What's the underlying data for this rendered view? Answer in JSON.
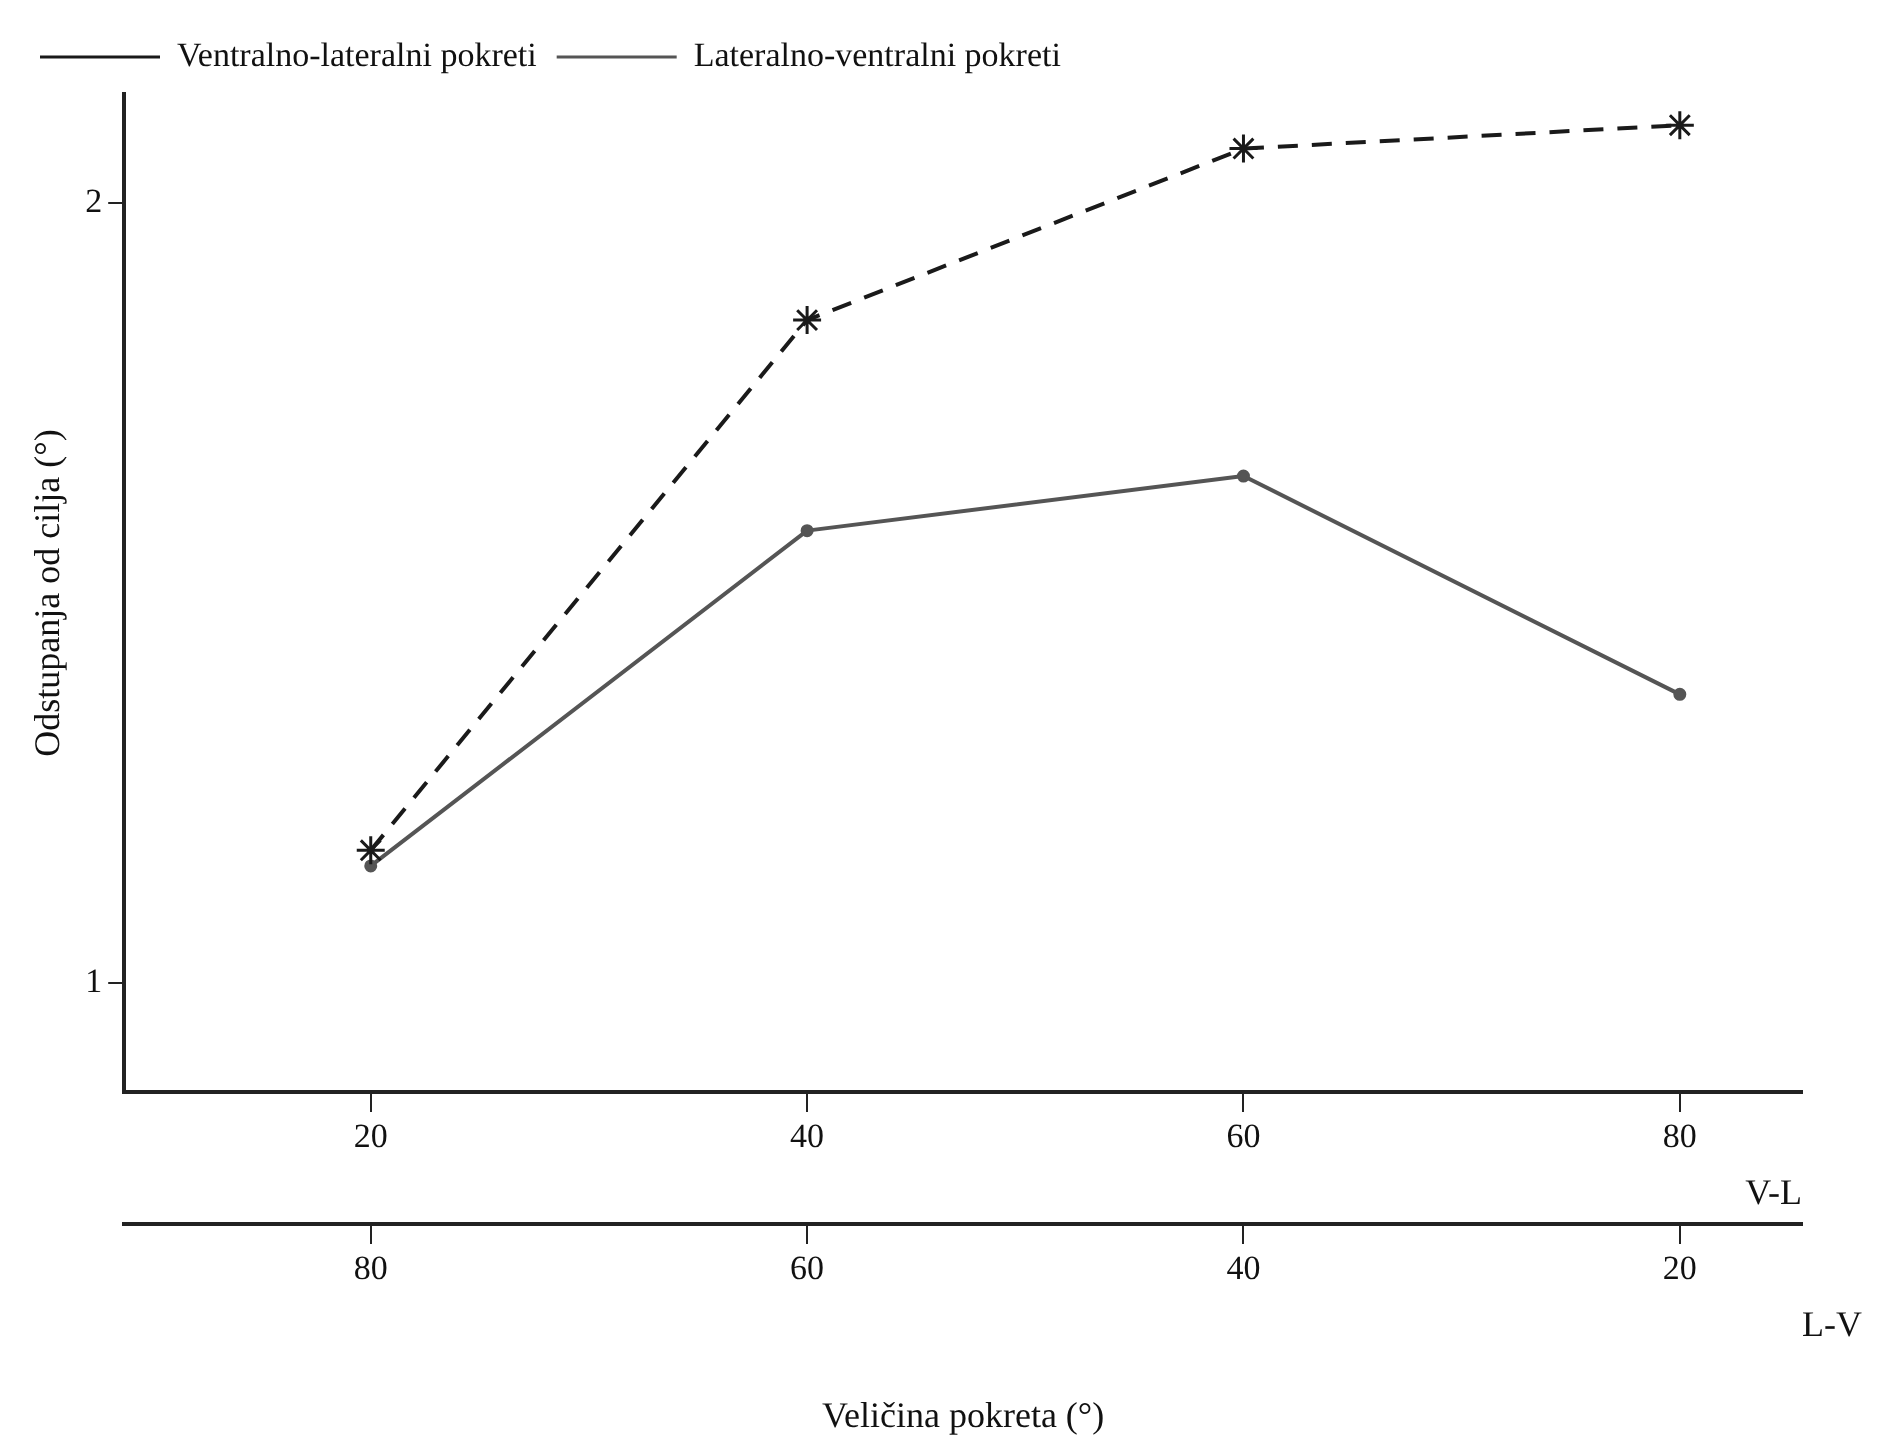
{
  "chart_data": {
    "type": "line",
    "ylabel": "Odstupanja od cilja (°)",
    "xlabel": "V-L",
    "x2label": "L-V",
    "annotations": [
      "Veličina pokreta (°)"
    ],
    "x": [
      20,
      40,
      60,
      80
    ],
    "xlim": [
      8.7,
      85.6
    ],
    "xticks": [
      20,
      40,
      60,
      80
    ],
    "x2lim": [
      91.3,
      14.4
    ],
    "x2ticks": [
      80,
      60,
      40,
      20
    ],
    "ylim": [
      0.86,
      2.14
    ],
    "yticks": [
      1,
      2
    ],
    "grid": false,
    "legend": "top left",
    "series": [
      {
        "name": "Ventralno-lateralni pokreti",
        "color": "#1a1a1a",
        "line_style": "dashed",
        "marker": "cross",
        "values": [
          1.17,
          1.85,
          2.07,
          2.1
        ]
      },
      {
        "name": "Lateralno-ventralni pokreti",
        "color": "#555555",
        "line_style": "solid",
        "marker": "circle",
        "values": [
          1.15,
          1.58,
          1.65,
          1.37
        ]
      }
    ]
  }
}
